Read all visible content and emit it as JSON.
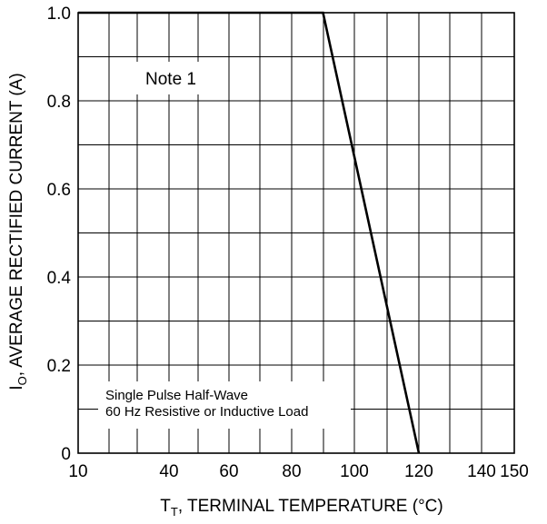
{
  "chart_data": {
    "type": "line",
    "xlabel": {
      "main": "T",
      "sub": "T",
      "rest": ", TERMINAL  TEMPERATURE (°C)"
    },
    "ylabel": {
      "main": "I",
      "sub": "O",
      "rest": ", AVERAGE RECTIFIED CURRENT (A)"
    },
    "xlim": [
      10,
      150
    ],
    "ylim": [
      0,
      1.0
    ],
    "x_ticks": [
      10,
      40,
      60,
      80,
      100,
      120,
      140,
      150
    ],
    "x_tick_labels": [
      "10",
      "40",
      "60",
      "80",
      "100",
      "120",
      "140",
      "150"
    ],
    "y_ticks": [
      0,
      0.2,
      0.4,
      0.6,
      0.8,
      1.0
    ],
    "y_tick_labels": [
      "0",
      "0.2",
      "0.4",
      "0.6",
      "0.8",
      "1.0"
    ],
    "grid": true,
    "series": [
      {
        "x": [
          10,
          90,
          120
        ],
        "y": [
          1.0,
          1.0,
          0
        ]
      }
    ],
    "annotations": {
      "note": "Note 1",
      "condition_line1": "Single Pulse Half-Wave",
      "condition_line2": "60 Hz Resistive or Inductive Load"
    }
  }
}
